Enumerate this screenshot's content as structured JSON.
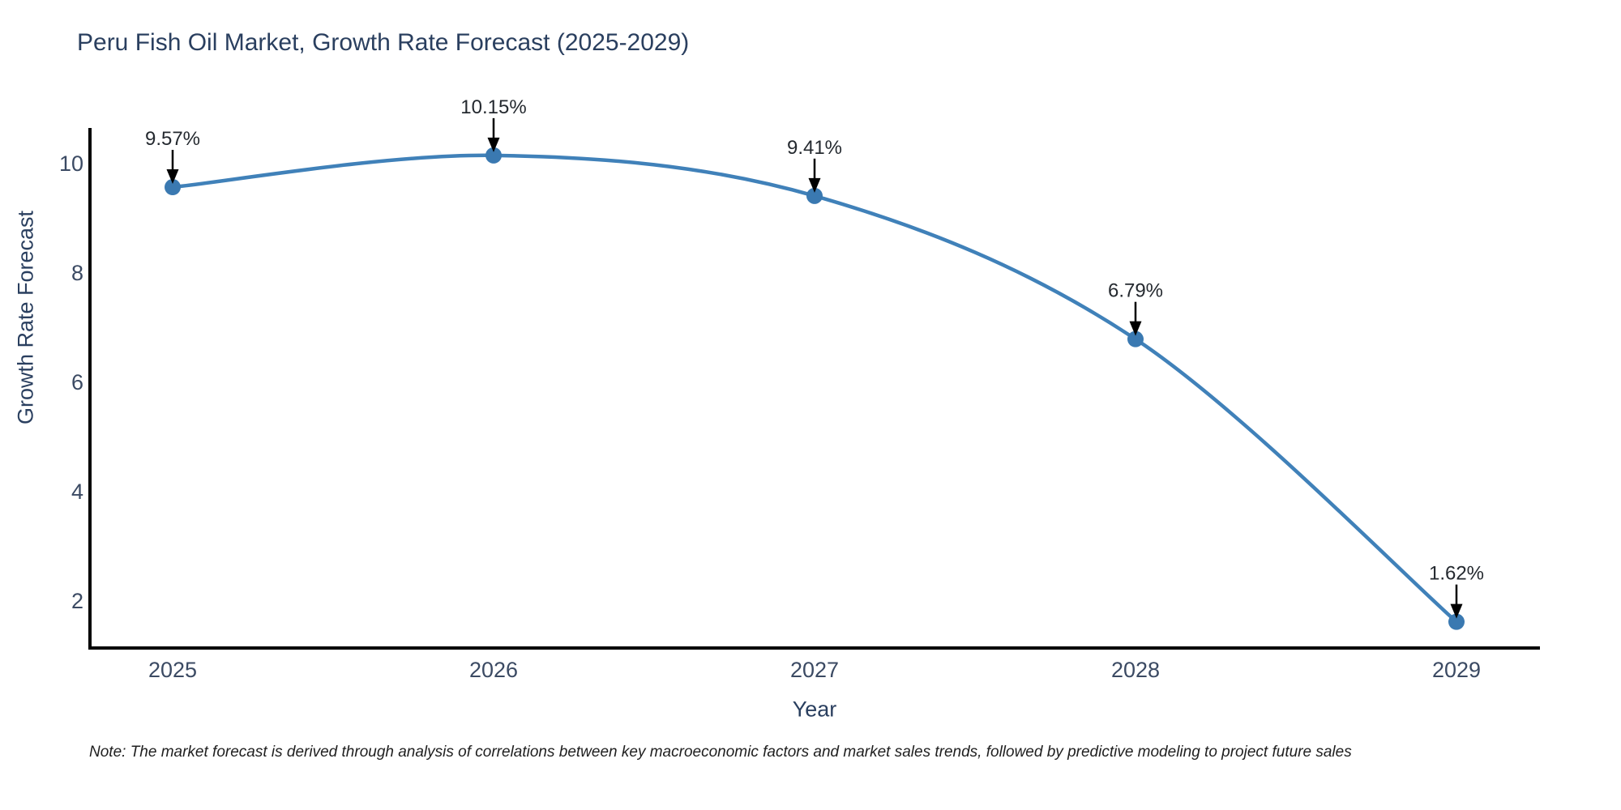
{
  "title": "Peru Fish Oil Market, Growth Rate Forecast (2025-2029)",
  "note": "Note: The market forecast is derived through analysis of correlations between key macroeconomic factors and market sales trends, followed by predictive modeling to project future sales",
  "chart_data": {
    "type": "line",
    "line_shape": "spline",
    "title": "Peru Fish Oil Market, Growth Rate Forecast (2025-2029)",
    "xlabel": "Year",
    "ylabel": "Growth Rate Forecast",
    "x": [
      2025,
      2026,
      2027,
      2028,
      2029
    ],
    "y": [
      9.57,
      10.15,
      9.41,
      6.79,
      1.62
    ],
    "point_labels": [
      "9.57%",
      "10.15%",
      "9.41%",
      "6.79%",
      "1.62%"
    ],
    "x_ticks": [
      "2025",
      "2026",
      "2027",
      "2028",
      "2029"
    ],
    "y_ticks": [
      "10",
      "8",
      "6",
      "4",
      "2"
    ],
    "y_tick_values": [
      10,
      8,
      6,
      4,
      2
    ],
    "xlim": [
      2024.74,
      2029.26
    ],
    "ylim": [
      1.14,
      10.7
    ],
    "grid": false,
    "legend": null,
    "markers": true,
    "annotations_have_arrows": true,
    "colors": {
      "line": "#4081b9",
      "marker": "#3a79b1",
      "axis": "#000000",
      "title_text": "#2a3f5f",
      "axis_title_text": "#2a3f5f",
      "tick_text": "#3b4a63",
      "annotation_text": "#24292f",
      "arrow": "#000000"
    }
  }
}
